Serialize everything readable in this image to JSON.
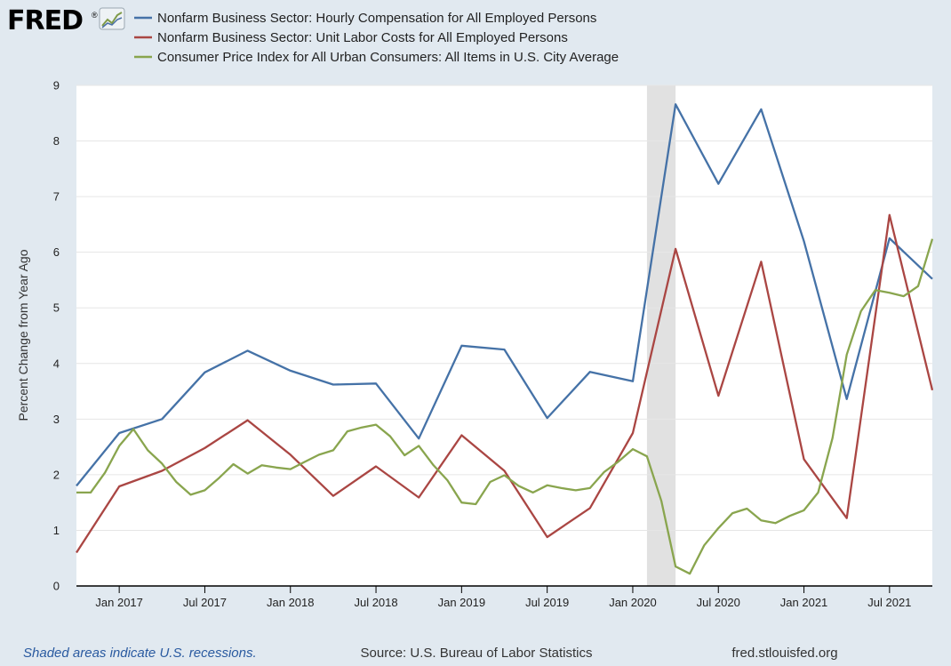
{
  "logo": {
    "text": "FRED",
    "mark": "®",
    "icon": "line-chart-icon"
  },
  "footer": {
    "recession_note": "Shaded areas indicate U.S. recessions.",
    "source": "Source: U.S. Bureau of Labor Statistics",
    "site": "fred.stlouisfed.org"
  },
  "chart_data": {
    "type": "line",
    "ylabel": "Percent Change from Year Ago",
    "ylim": [
      0,
      9
    ],
    "yticks": [
      0,
      1,
      2,
      3,
      4,
      5,
      6,
      7,
      8,
      9
    ],
    "xlim": [
      2016.75,
      2021.75
    ],
    "xticks": [
      {
        "label": "Jan 2017",
        "value": 2017.0
      },
      {
        "label": "Jul 2017",
        "value": 2017.5
      },
      {
        "label": "Jan 2018",
        "value": 2018.0
      },
      {
        "label": "Jul 2018",
        "value": 2018.5
      },
      {
        "label": "Jan 2019",
        "value": 2019.0
      },
      {
        "label": "Jul 2019",
        "value": 2019.5
      },
      {
        "label": "Jan 2020",
        "value": 2020.0
      },
      {
        "label": "Jul 2020",
        "value": 2020.5
      },
      {
        "label": "Jan 2021",
        "value": 2021.0
      },
      {
        "label": "Jul 2021",
        "value": 2021.5
      }
    ],
    "recessions": [
      {
        "start": 2020.083,
        "end": 2020.25
      }
    ],
    "series": [
      {
        "name": "Nonfarm Business Sector: Hourly Compensation for All Employed Persons",
        "color": "#4572a7",
        "points": [
          [
            2016.75,
            1.8
          ],
          [
            2017.0,
            2.75
          ],
          [
            2017.25,
            3.0
          ],
          [
            2017.5,
            3.84
          ],
          [
            2017.75,
            4.23
          ],
          [
            2018.0,
            3.87
          ],
          [
            2018.25,
            3.62
          ],
          [
            2018.5,
            3.64
          ],
          [
            2018.75,
            2.65
          ],
          [
            2019.0,
            4.32
          ],
          [
            2019.25,
            4.25
          ],
          [
            2019.5,
            3.02
          ],
          [
            2019.75,
            3.85
          ],
          [
            2020.0,
            3.68
          ],
          [
            2020.25,
            8.66
          ],
          [
            2020.5,
            7.23
          ],
          [
            2020.75,
            8.57
          ],
          [
            2021.0,
            6.2
          ],
          [
            2021.25,
            3.36
          ],
          [
            2021.5,
            6.25
          ],
          [
            2021.75,
            5.52
          ]
        ]
      },
      {
        "name": "Nonfarm Business Sector: Unit Labor Costs for All Employed Persons",
        "color": "#aa4643",
        "points": [
          [
            2016.75,
            0.6
          ],
          [
            2017.0,
            1.79
          ],
          [
            2017.25,
            2.07
          ],
          [
            2017.5,
            2.48
          ],
          [
            2017.75,
            2.98
          ],
          [
            2018.0,
            2.36
          ],
          [
            2018.25,
            1.62
          ],
          [
            2018.5,
            2.15
          ],
          [
            2018.75,
            1.59
          ],
          [
            2019.0,
            2.71
          ],
          [
            2019.25,
            2.07
          ],
          [
            2019.5,
            0.88
          ],
          [
            2019.75,
            1.4
          ],
          [
            2020.0,
            2.75
          ],
          [
            2020.25,
            6.06
          ],
          [
            2020.5,
            3.42
          ],
          [
            2020.75,
            5.83
          ],
          [
            2021.0,
            2.28
          ],
          [
            2021.25,
            1.22
          ],
          [
            2021.5,
            6.67
          ],
          [
            2021.75,
            3.52
          ]
        ]
      },
      {
        "name": "Consumer Price Index for All Urban Consumers: All Items in U.S. City Average",
        "color": "#89a54e",
        "points": [
          [
            2016.75,
            1.68
          ],
          [
            2016.833,
            1.68
          ],
          [
            2016.917,
            2.04
          ],
          [
            2017.0,
            2.52
          ],
          [
            2017.083,
            2.82
          ],
          [
            2017.167,
            2.44
          ],
          [
            2017.25,
            2.2
          ],
          [
            2017.333,
            1.87
          ],
          [
            2017.417,
            1.64
          ],
          [
            2017.5,
            1.72
          ],
          [
            2017.583,
            1.94
          ],
          [
            2017.667,
            2.19
          ],
          [
            2017.75,
            2.02
          ],
          [
            2017.833,
            2.17
          ],
          [
            2017.917,
            2.13
          ],
          [
            2018.0,
            2.1
          ],
          [
            2018.083,
            2.23
          ],
          [
            2018.167,
            2.36
          ],
          [
            2018.25,
            2.44
          ],
          [
            2018.333,
            2.78
          ],
          [
            2018.417,
            2.85
          ],
          [
            2018.5,
            2.9
          ],
          [
            2018.583,
            2.69
          ],
          [
            2018.667,
            2.35
          ],
          [
            2018.75,
            2.52
          ],
          [
            2018.833,
            2.18
          ],
          [
            2018.917,
            1.9
          ],
          [
            2019.0,
            1.5
          ],
          [
            2019.083,
            1.47
          ],
          [
            2019.167,
            1.87
          ],
          [
            2019.25,
            1.99
          ],
          [
            2019.333,
            1.8
          ],
          [
            2019.417,
            1.68
          ],
          [
            2019.5,
            1.81
          ],
          [
            2019.583,
            1.76
          ],
          [
            2019.667,
            1.72
          ],
          [
            2019.75,
            1.76
          ],
          [
            2019.833,
            2.05
          ],
          [
            2019.917,
            2.24
          ],
          [
            2020.0,
            2.46
          ],
          [
            2020.083,
            2.33
          ],
          [
            2020.167,
            1.53
          ],
          [
            2020.25,
            0.35
          ],
          [
            2020.333,
            0.22
          ],
          [
            2020.417,
            0.73
          ],
          [
            2020.5,
            1.04
          ],
          [
            2020.583,
            1.31
          ],
          [
            2020.667,
            1.39
          ],
          [
            2020.75,
            1.18
          ],
          [
            2020.833,
            1.13
          ],
          [
            2020.917,
            1.26
          ],
          [
            2021.0,
            1.36
          ],
          [
            2021.083,
            1.68
          ],
          [
            2021.167,
            2.66
          ],
          [
            2021.25,
            4.16
          ],
          [
            2021.333,
            4.94
          ],
          [
            2021.417,
            5.32
          ],
          [
            2021.5,
            5.27
          ],
          [
            2021.583,
            5.21
          ],
          [
            2021.667,
            5.39
          ],
          [
            2021.75,
            6.24
          ]
        ]
      }
    ]
  }
}
